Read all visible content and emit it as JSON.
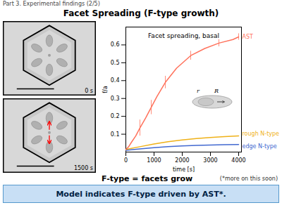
{
  "chart_data": {
    "type": "line",
    "title": "Facet Spreading (F-type growth)",
    "subtitle": "Part 3. Experimental findings  (2/5)",
    "xlabel": "time [s]",
    "ylabel": "f/a",
    "xlim": [
      0,
      4100
    ],
    "ylim": [
      0,
      0.7
    ],
    "xticks": [
      0,
      1000,
      2000,
      3000,
      4000
    ],
    "yticks": [
      0.1,
      0.2,
      0.3,
      0.4,
      0.5,
      0.6
    ],
    "series": [
      {
        "name": "edge N-type",
        "x": [
          0,
          500,
          1000,
          1500,
          2000,
          2500,
          3000,
          3500,
          4000
        ],
        "values": [
          0.01,
          0.018,
          0.025,
          0.03,
          0.034,
          0.037,
          0.039,
          0.041,
          0.042
        ]
      },
      {
        "name": "rough N-type",
        "x": [
          0,
          500,
          1000,
          1500,
          2000,
          2500,
          3000,
          3500,
          4000
        ],
        "values": [
          0.015,
          0.03,
          0.045,
          0.058,
          0.068,
          0.076,
          0.082,
          0.087,
          0.09
        ]
      },
      {
        "name": "AST",
        "x": [
          0,
          100,
          200,
          350,
          500,
          700,
          900,
          1100,
          1400,
          1800,
          2300,
          2800,
          3300,
          3800,
          4000
        ],
        "values": [
          0.015,
          0.03,
          0.055,
          0.09,
          0.135,
          0.19,
          0.25,
          0.31,
          0.39,
          0.47,
          0.54,
          0.58,
          0.61,
          0.63,
          0.645
        ],
        "error_bars": {
          "x": [
            500,
            900,
            1400,
            2300,
            3300,
            4000
          ],
          "values": [
            0.135,
            0.25,
            0.39,
            0.54,
            0.61,
            0.645
          ],
          "errors": [
            0.045,
            0.04,
            0.035,
            0.025,
            0.02,
            0.018
          ]
        }
      }
    ],
    "graph_title": "Facet spreading, basal",
    "inset_labels": [
      "r",
      "R"
    ],
    "panel_labels": [
      "0 s",
      "1500 s"
    ],
    "ftype_label": "F-type = facets grow",
    "model_label": "Model indicates F-type driven by AST*.",
    "footnote": "(*more on this soon)"
  }
}
